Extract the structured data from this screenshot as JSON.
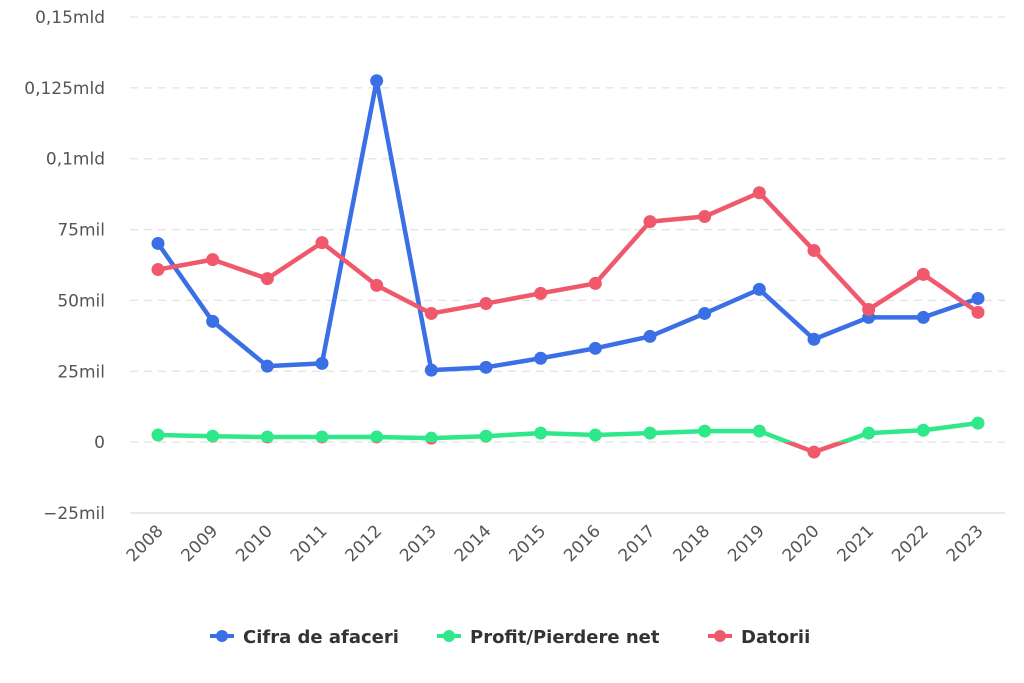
{
  "chart_data": {
    "type": "line",
    "title": "",
    "xlabel": "",
    "ylabel": "",
    "categories": [
      "2008",
      "2009",
      "2010",
      "2011",
      "2012",
      "2013",
      "2014",
      "2015",
      "2016",
      "2017",
      "2018",
      "2019",
      "2020",
      "2021",
      "2022",
      "2023"
    ],
    "ylim": [
      -25,
      150
    ],
    "yunit": "thousand",
    "yticks": [
      {
        "value": 150,
        "label": "0,15mld"
      },
      {
        "value": 125,
        "label": "0,125mld"
      },
      {
        "value": 100,
        "label": "0,1mld"
      },
      {
        "value": 75,
        "label": "75mil"
      },
      {
        "value": 50,
        "label": "50mil"
      },
      {
        "value": 25,
        "label": "25mil"
      },
      {
        "value": 0,
        "label": "0"
      },
      {
        "value": -25,
        "label": "−25mil"
      }
    ],
    "grid": true,
    "legend_position": "bottom",
    "negative_color": "#f0596b",
    "series": [
      {
        "name": "Cifra de afaceri",
        "color": "#3b6fe6",
        "values": [
          70.1,
          42.6,
          26.8,
          27.8,
          127.5,
          25.4,
          26.4,
          29.6,
          33.1,
          37.3,
          45.4,
          53.9,
          36.3,
          44.0,
          44.0,
          50.7
        ]
      },
      {
        "name": "Profit/Pierdere net",
        "color": "#2ee88a",
        "negative_zone": true,
        "values": [
          2.5,
          2.1,
          1.8,
          1.8,
          1.8,
          1.4,
          2.1,
          3.2,
          2.5,
          3.2,
          3.9,
          3.9,
          -3.5,
          3.2,
          4.2,
          6.7
        ]
      },
      {
        "name": "Datorii",
        "color": "#f0596b",
        "values": [
          60.9,
          64.4,
          57.7,
          70.4,
          55.3,
          45.4,
          48.9,
          52.5,
          56.0,
          77.8,
          79.6,
          88.0,
          67.6,
          46.8,
          59.2,
          45.8
        ]
      }
    ]
  }
}
